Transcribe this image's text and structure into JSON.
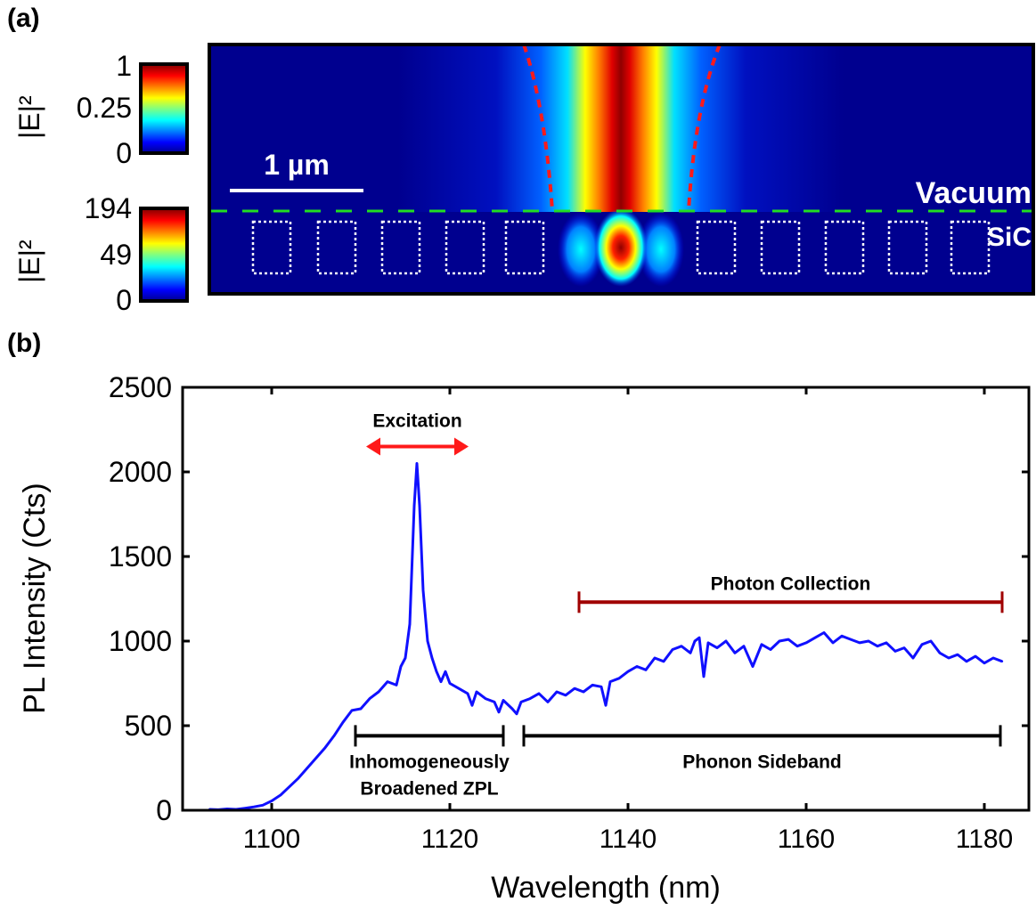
{
  "panel_a": {
    "label": "(a)",
    "colorbar_top": {
      "label": "|E|²",
      "ticks": [
        "1",
        "0.25",
        "0"
      ]
    },
    "colorbar_bottom": {
      "label": "|E|²",
      "ticks": [
        "194",
        "49",
        "0"
      ]
    },
    "scale_bar": "1 µm",
    "region_top": "Vacuum",
    "region_bottom": "SiC",
    "colors": {
      "interface_line": "#22dd22",
      "beam_boundary": "#ff1a1a",
      "holes": "#ffffff",
      "background": "#00008f"
    }
  },
  "chart_data": {
    "label": "(b)",
    "type": "line",
    "xlabel": "Wavelength (nm)",
    "ylabel": "PL Intensity (Cts)",
    "xlim": [
      1090,
      1185
    ],
    "ylim": [
      0,
      2500
    ],
    "xticks": [
      1100,
      1120,
      1140,
      1160,
      1180
    ],
    "yticks": [
      0,
      500,
      1000,
      1500,
      2000,
      2500
    ],
    "grid": false,
    "series_color": "#1010ff",
    "x": [
      1093,
      1094,
      1095,
      1096,
      1097,
      1098,
      1099,
      1100,
      1101,
      1102,
      1103,
      1104,
      1105,
      1106,
      1107,
      1108,
      1109,
      1110,
      1111,
      1112,
      1113,
      1114,
      1114.5,
      1115,
      1115.5,
      1116,
      1116.3,
      1116.6,
      1117,
      1117.5,
      1118,
      1118.5,
      1119,
      1119.5,
      1120,
      1121,
      1122,
      1122.5,
      1123,
      1124,
      1125,
      1125.5,
      1126,
      1127,
      1127.5,
      1128,
      1129,
      1130,
      1131,
      1132,
      1133,
      1134,
      1135,
      1136,
      1137,
      1137.5,
      1138,
      1139,
      1140,
      1141,
      1142,
      1143,
      1144,
      1145,
      1146,
      1147,
      1147.5,
      1148,
      1148.5,
      1149,
      1150,
      1151,
      1152,
      1153,
      1154,
      1155,
      1156,
      1157,
      1158,
      1159,
      1160,
      1161,
      1162,
      1163,
      1164,
      1165,
      1166,
      1167,
      1168,
      1169,
      1170,
      1171,
      1172,
      1173,
      1174,
      1175,
      1176,
      1177,
      1178,
      1179,
      1180,
      1181,
      1182
    ],
    "y": [
      5,
      3,
      8,
      5,
      12,
      20,
      30,
      55,
      90,
      140,
      190,
      250,
      310,
      370,
      440,
      520,
      590,
      600,
      660,
      700,
      760,
      740,
      850,
      900,
      1100,
      1800,
      2050,
      1800,
      1300,
      1000,
      900,
      820,
      760,
      820,
      750,
      720,
      690,
      620,
      700,
      660,
      640,
      580,
      650,
      600,
      570,
      640,
      660,
      690,
      640,
      700,
      680,
      720,
      700,
      740,
      730,
      620,
      760,
      780,
      820,
      850,
      830,
      900,
      880,
      950,
      970,
      930,
      1000,
      1020,
      790,
      990,
      960,
      1000,
      930,
      970,
      850,
      980,
      950,
      1000,
      1010,
      970,
      990,
      1020,
      1050,
      990,
      1030,
      1010,
      990,
      1000,
      970,
      990,
      940,
      960,
      900,
      980,
      1000,
      930,
      900,
      920,
      880,
      910,
      870,
      900,
      880
    ],
    "annotations": [
      {
        "text": "Excitation",
        "type": "double-arrow",
        "x_range": [
          1110.6,
          1122.1
        ],
        "y": 2150,
        "color": "#ff1a1a"
      },
      {
        "text": "Photon Collection",
        "type": "range-bar",
        "x_range": [
          1134.5,
          1182
        ],
        "y": 1230,
        "color": "#a00000"
      },
      {
        "text": "Inhomogeneously",
        "text2": "Broadened ZPL",
        "type": "range-bar",
        "x_range": [
          1109.4,
          1126
        ],
        "y": 440,
        "color": "#000000"
      },
      {
        "text": "Phonon Sideband",
        "type": "range-bar",
        "x_range": [
          1128.3,
          1181.8
        ],
        "y": 440,
        "color": "#000000"
      }
    ]
  }
}
